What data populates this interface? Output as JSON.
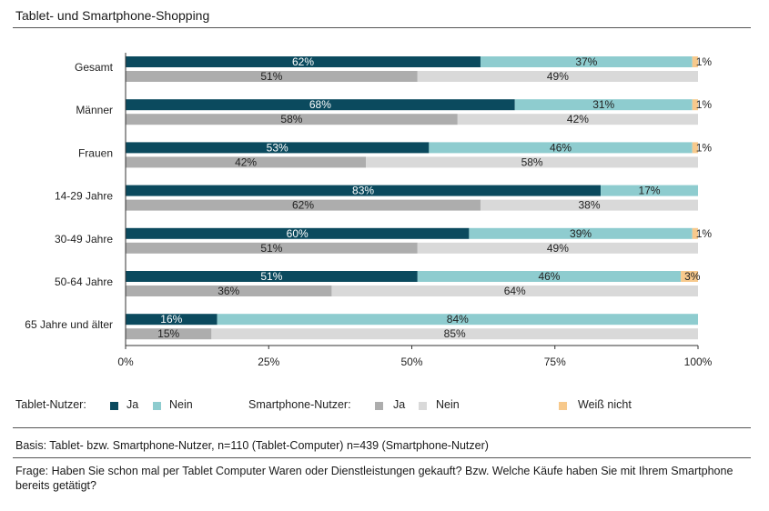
{
  "title": "Tablet- und Smartphone-Shopping",
  "colors": {
    "tablet_ja": "#0b4a5e",
    "tablet_nein": "#8ecccf",
    "smart_ja": "#adadad",
    "smart_nein": "#d9d9d9",
    "weiss_nicht": "#f7c98c"
  },
  "legend": {
    "tablet_label": "Tablet-Nutzer:",
    "smart_label": "Smartphone-Nutzer:",
    "ja": "Ja",
    "nein": "Nein",
    "weiss_nicht": "Weiß nicht"
  },
  "basis": "Basis: Tablet- bzw. Smartphone-Nutzer, n=110 (Tablet-Computer) n=439 (Smartphone-Nutzer)",
  "frage": "Frage: Haben Sie schon mal per Tablet Computer Waren oder Dienstleistungen gekauft? Bzw. Welche Käufe haben Sie mit Ihrem Smartphone bereits getätigt?",
  "chart_data": {
    "type": "bar",
    "orientation": "horizontal",
    "stacked": true,
    "categories": [
      "Gesamt",
      "Männer",
      "Frauen",
      "14-29 Jahre",
      "30-49 Jahre",
      "50-64 Jahre",
      "65 Jahre und älter"
    ],
    "x_ticks": [
      "0%",
      "25%",
      "50%",
      "75%",
      "100%"
    ],
    "xlim": [
      0,
      100
    ],
    "tablet": {
      "ja": [
        62,
        68,
        53,
        83,
        60,
        51,
        16
      ],
      "nein": [
        37,
        31,
        46,
        17,
        39,
        46,
        84
      ],
      "weiss_nicht": [
        1,
        1,
        1,
        0,
        1,
        3,
        0
      ]
    },
    "smartphone": {
      "ja": [
        51,
        58,
        42,
        62,
        51,
        36,
        15
      ],
      "nein": [
        49,
        42,
        58,
        38,
        49,
        64,
        85
      ]
    },
    "legend_position": "bottom"
  }
}
